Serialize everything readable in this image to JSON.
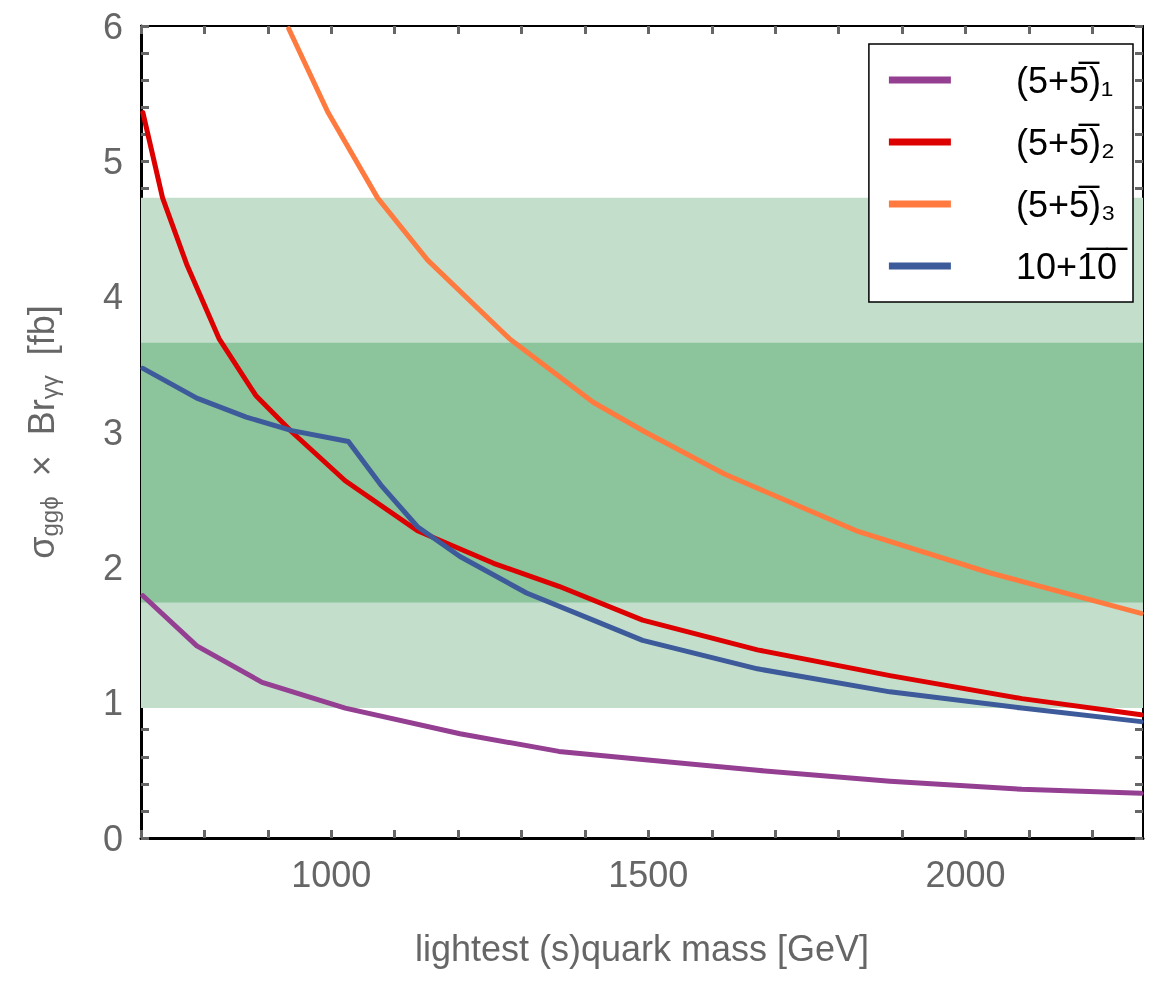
{
  "chart_data": {
    "type": "line",
    "xlabel": "lightest (s)quark mass [GeV]",
    "ylabel": "σ$_{ggϕ}$  ×  Br$_{γγ}$  [fb]",
    "xlim": [
      700,
      2280
    ],
    "ylim": [
      0,
      6
    ],
    "xticks": [
      {
        "value": 700,
        "label": null
      },
      {
        "value": 800,
        "label": null
      },
      {
        "value": 900,
        "label": null
      },
      1000,
      {
        "value": 1100,
        "label": null
      },
      {
        "value": 1200,
        "label": null
      },
      {
        "value": 1300,
        "label": null
      },
      {
        "value": 1400,
        "label": null
      },
      1500,
      {
        "value": 1600,
        "label": null
      },
      {
        "value": 1700,
        "label": null
      },
      {
        "value": 1800,
        "label": null
      },
      {
        "value": 1900,
        "label": null
      },
      2000,
      {
        "value": 2100,
        "label": null
      },
      {
        "value": 2200,
        "label": null
      }
    ],
    "yticks": [
      0,
      {
        "value": 0.2,
        "label": null
      },
      {
        "value": 0.4,
        "label": null
      },
      {
        "value": 0.6,
        "label": null
      },
      {
        "value": 0.8,
        "label": null
      },
      1,
      {
        "value": 1.2,
        "label": null
      },
      {
        "value": 1.4,
        "label": null
      },
      {
        "value": 1.6,
        "label": null
      },
      {
        "value": 1.8,
        "label": null
      },
      2,
      {
        "value": 2.2,
        "label": null
      },
      {
        "value": 2.4,
        "label": null
      },
      {
        "value": 2.6,
        "label": null
      },
      {
        "value": 2.8,
        "label": null
      },
      3,
      {
        "value": 3.2,
        "label": null
      },
      {
        "value": 3.4,
        "label": null
      },
      {
        "value": 3.6,
        "label": null
      },
      {
        "value": 3.8,
        "label": null
      },
      4,
      {
        "value": 4.2,
        "label": null
      },
      {
        "value": 4.4,
        "label": null
      },
      {
        "value": 4.6,
        "label": null
      },
      {
        "value": 4.8,
        "label": null
      },
      5,
      {
        "value": 5.2,
        "label": null
      },
      {
        "value": 5.4,
        "label": null
      },
      {
        "value": 5.6,
        "label": null
      },
      {
        "value": 5.8,
        "label": null
      },
      6
    ],
    "grid": false,
    "legend": "top right",
    "marker": "none",
    "line_style": "solid",
    "bands": [
      {
        "axis": "y",
        "from": 0.96,
        "to": 4.73,
        "color": "#c3dfcc"
      },
      {
        "axis": "y",
        "from": 1.74,
        "to": 3.66,
        "color": "#8cc49c"
      }
    ],
    "series": [
      {
        "name": "(5+5̅)₁",
        "color": "#943f91",
        "x": [
          703,
          788,
          891,
          1022,
          1203,
          1359,
          1491,
          1672,
          1881,
          2089,
          2277
        ],
        "values": [
          1.79,
          1.42,
          1.15,
          0.96,
          0.77,
          0.64,
          0.58,
          0.5,
          0.42,
          0.36,
          0.33
        ]
      },
      {
        "name": "(5+5̅)₂",
        "color": "#dd0000",
        "x": [
          703,
          734,
          772,
          823,
          881,
          938,
          1022,
          1136,
          1256,
          1359,
          1491,
          1672,
          1881,
          2089,
          2277
        ],
        "values": [
          5.36,
          4.73,
          4.24,
          3.69,
          3.27,
          3.0,
          2.64,
          2.27,
          2.03,
          1.86,
          1.61,
          1.39,
          1.2,
          1.03,
          0.91
        ]
      },
      {
        "name": "(5+5̅)₃",
        "color": "#ff7a3f",
        "x": [
          933,
          995,
          1073,
          1152,
          1281,
          1413,
          1495,
          1620,
          1828,
          2038,
          2277
        ],
        "values": [
          5.98,
          5.36,
          4.73,
          4.27,
          3.69,
          3.22,
          3.0,
          2.69,
          2.27,
          1.96,
          1.66
        ]
      },
      {
        "name": "10+1̅0̅",
        "color": "#3d5a9a",
        "x": [
          703,
          788,
          866,
          938,
          1027,
          1078,
          1136,
          1203,
          1308,
          1413,
          1491,
          1672,
          1881,
          2089,
          2277
        ],
        "values": [
          3.47,
          3.25,
          3.11,
          3.01,
          2.93,
          2.61,
          2.3,
          2.08,
          1.81,
          1.61,
          1.46,
          1.25,
          1.08,
          0.96,
          0.86
        ]
      }
    ]
  }
}
